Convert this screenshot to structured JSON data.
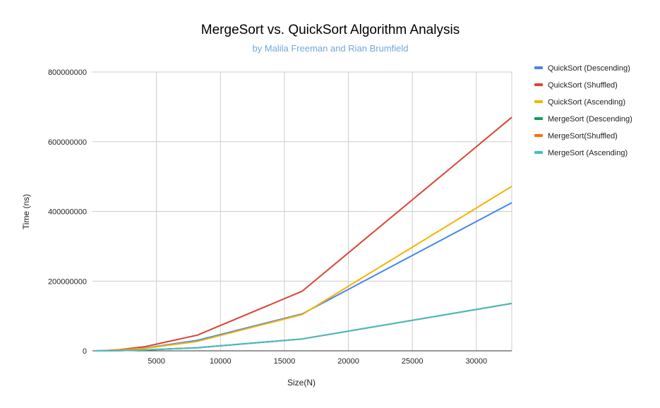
{
  "chart_data": {
    "type": "line",
    "title": "MergeSort vs. QuickSort Algorithm Analysis",
    "subtitle": "by Malila Freeman and Rian Brumfield",
    "xlabel": "Size(N)",
    "ylabel": "Time (ns)",
    "xlim": [
      0,
      32768
    ],
    "ylim": [
      0,
      800000000
    ],
    "xticks": [
      5000,
      10000,
      15000,
      20000,
      25000,
      30000
    ],
    "yticks": [
      0,
      200000000,
      400000000,
      600000000,
      800000000
    ],
    "x_tick_labels": [
      "5000",
      "10000",
      "15000",
      "20000",
      "25000",
      "30000"
    ],
    "y_tick_labels": [
      "0",
      "200000000",
      "400000000",
      "600000000",
      "800000000"
    ],
    "grid": true,
    "legend_position": "right",
    "x": [
      256,
      512,
      1024,
      2048,
      4096,
      8192,
      16384,
      32768
    ],
    "series": [
      {
        "name": "QuickSort (Descending)",
        "color": "#4285f4",
        "values": [
          100000,
          200000,
          500000,
          2000000,
          8000000,
          30000000,
          106000000,
          425000000
        ]
      },
      {
        "name": "QuickSort (Shuffled)",
        "color": "#db4437",
        "values": [
          100000,
          300000,
          800000,
          3000000,
          12000000,
          45000000,
          171000000,
          670000000
        ]
      },
      {
        "name": "QuickSort (Ascending)",
        "color": "#f4b400",
        "values": [
          100000,
          200000,
          500000,
          2000000,
          7000000,
          27000000,
          104000000,
          472000000
        ]
      },
      {
        "name": "MergeSort (Descending)",
        "color": "#0f9d58",
        "values": [
          50000,
          100000,
          200000,
          600000,
          2500000,
          9000000,
          34000000,
          136000000
        ]
      },
      {
        "name": "MergeSort(Shuffled)",
        "color": "#ff6d01",
        "values": [
          50000,
          100000,
          200000,
          600000,
          2500000,
          9000000,
          34000000,
          136000000
        ]
      },
      {
        "name": "MergeSort (Ascending)",
        "color": "#46bdc6",
        "values": [
          50000,
          100000,
          200000,
          600000,
          2500000,
          9000000,
          34000000,
          136000000
        ]
      }
    ]
  }
}
